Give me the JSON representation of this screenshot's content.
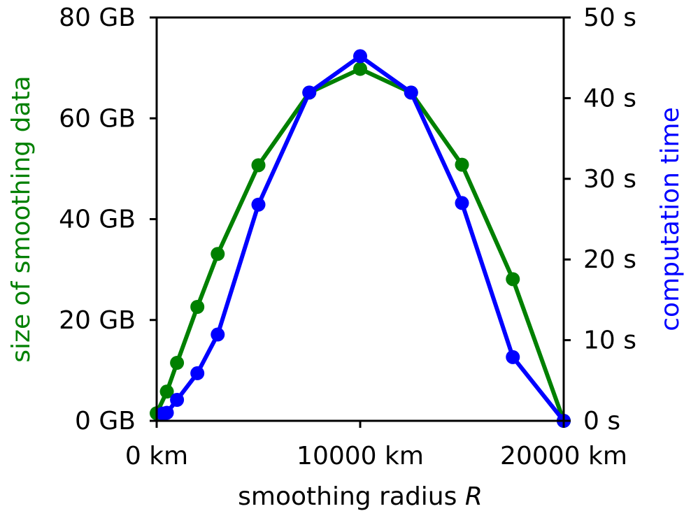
{
  "chart_data": {
    "type": "line",
    "xlabel": "smoothing radius",
    "xlabel_symbol": "R",
    "ylabel_left": "size of smoothing data",
    "ylabel_right": "computation time",
    "x_unit": "km",
    "y_left_unit": "GB",
    "y_right_unit": "s",
    "xlim": [
      0,
      20000
    ],
    "ylim_left": [
      0,
      80
    ],
    "ylim_right": [
      0,
      50
    ],
    "x_ticks": [
      0,
      10000,
      20000
    ],
    "y_left_ticks": [
      0,
      20,
      40,
      60,
      80
    ],
    "y_right_ticks": [
      0,
      10,
      20,
      30,
      40,
      50
    ],
    "x_tick_labels": [
      "0 km",
      "10000 km",
      "20000 km"
    ],
    "y_left_tick_labels": [
      "0 GB",
      "20 GB",
      "40 GB",
      "60 GB",
      "80 GB"
    ],
    "y_right_tick_labels": [
      "0 s",
      "10 s",
      "20 s",
      "30 s",
      "40 s",
      "50 s"
    ],
    "grid": false,
    "series": [
      {
        "axis": "left",
        "color": "#008000",
        "x": [
          0,
          500,
          1000,
          2000,
          3000,
          5000,
          7500,
          10000,
          12500,
          15000,
          17500,
          20000
        ],
        "values": [
          1.5,
          5.8,
          11.5,
          22.6,
          33.1,
          50.7,
          65.1,
          69.8,
          65.1,
          50.8,
          28.1,
          0
        ]
      },
      {
        "axis": "right",
        "color": "#0000ff",
        "x": [
          300,
          500,
          1000,
          2000,
          3000,
          5000,
          7500,
          10000,
          12500,
          15000,
          17500,
          20000
        ],
        "values": [
          0.9,
          1.0,
          2.6,
          5.9,
          10.7,
          26.8,
          40.7,
          45.2,
          40.7,
          27.0,
          7.9,
          0
        ]
      }
    ]
  }
}
